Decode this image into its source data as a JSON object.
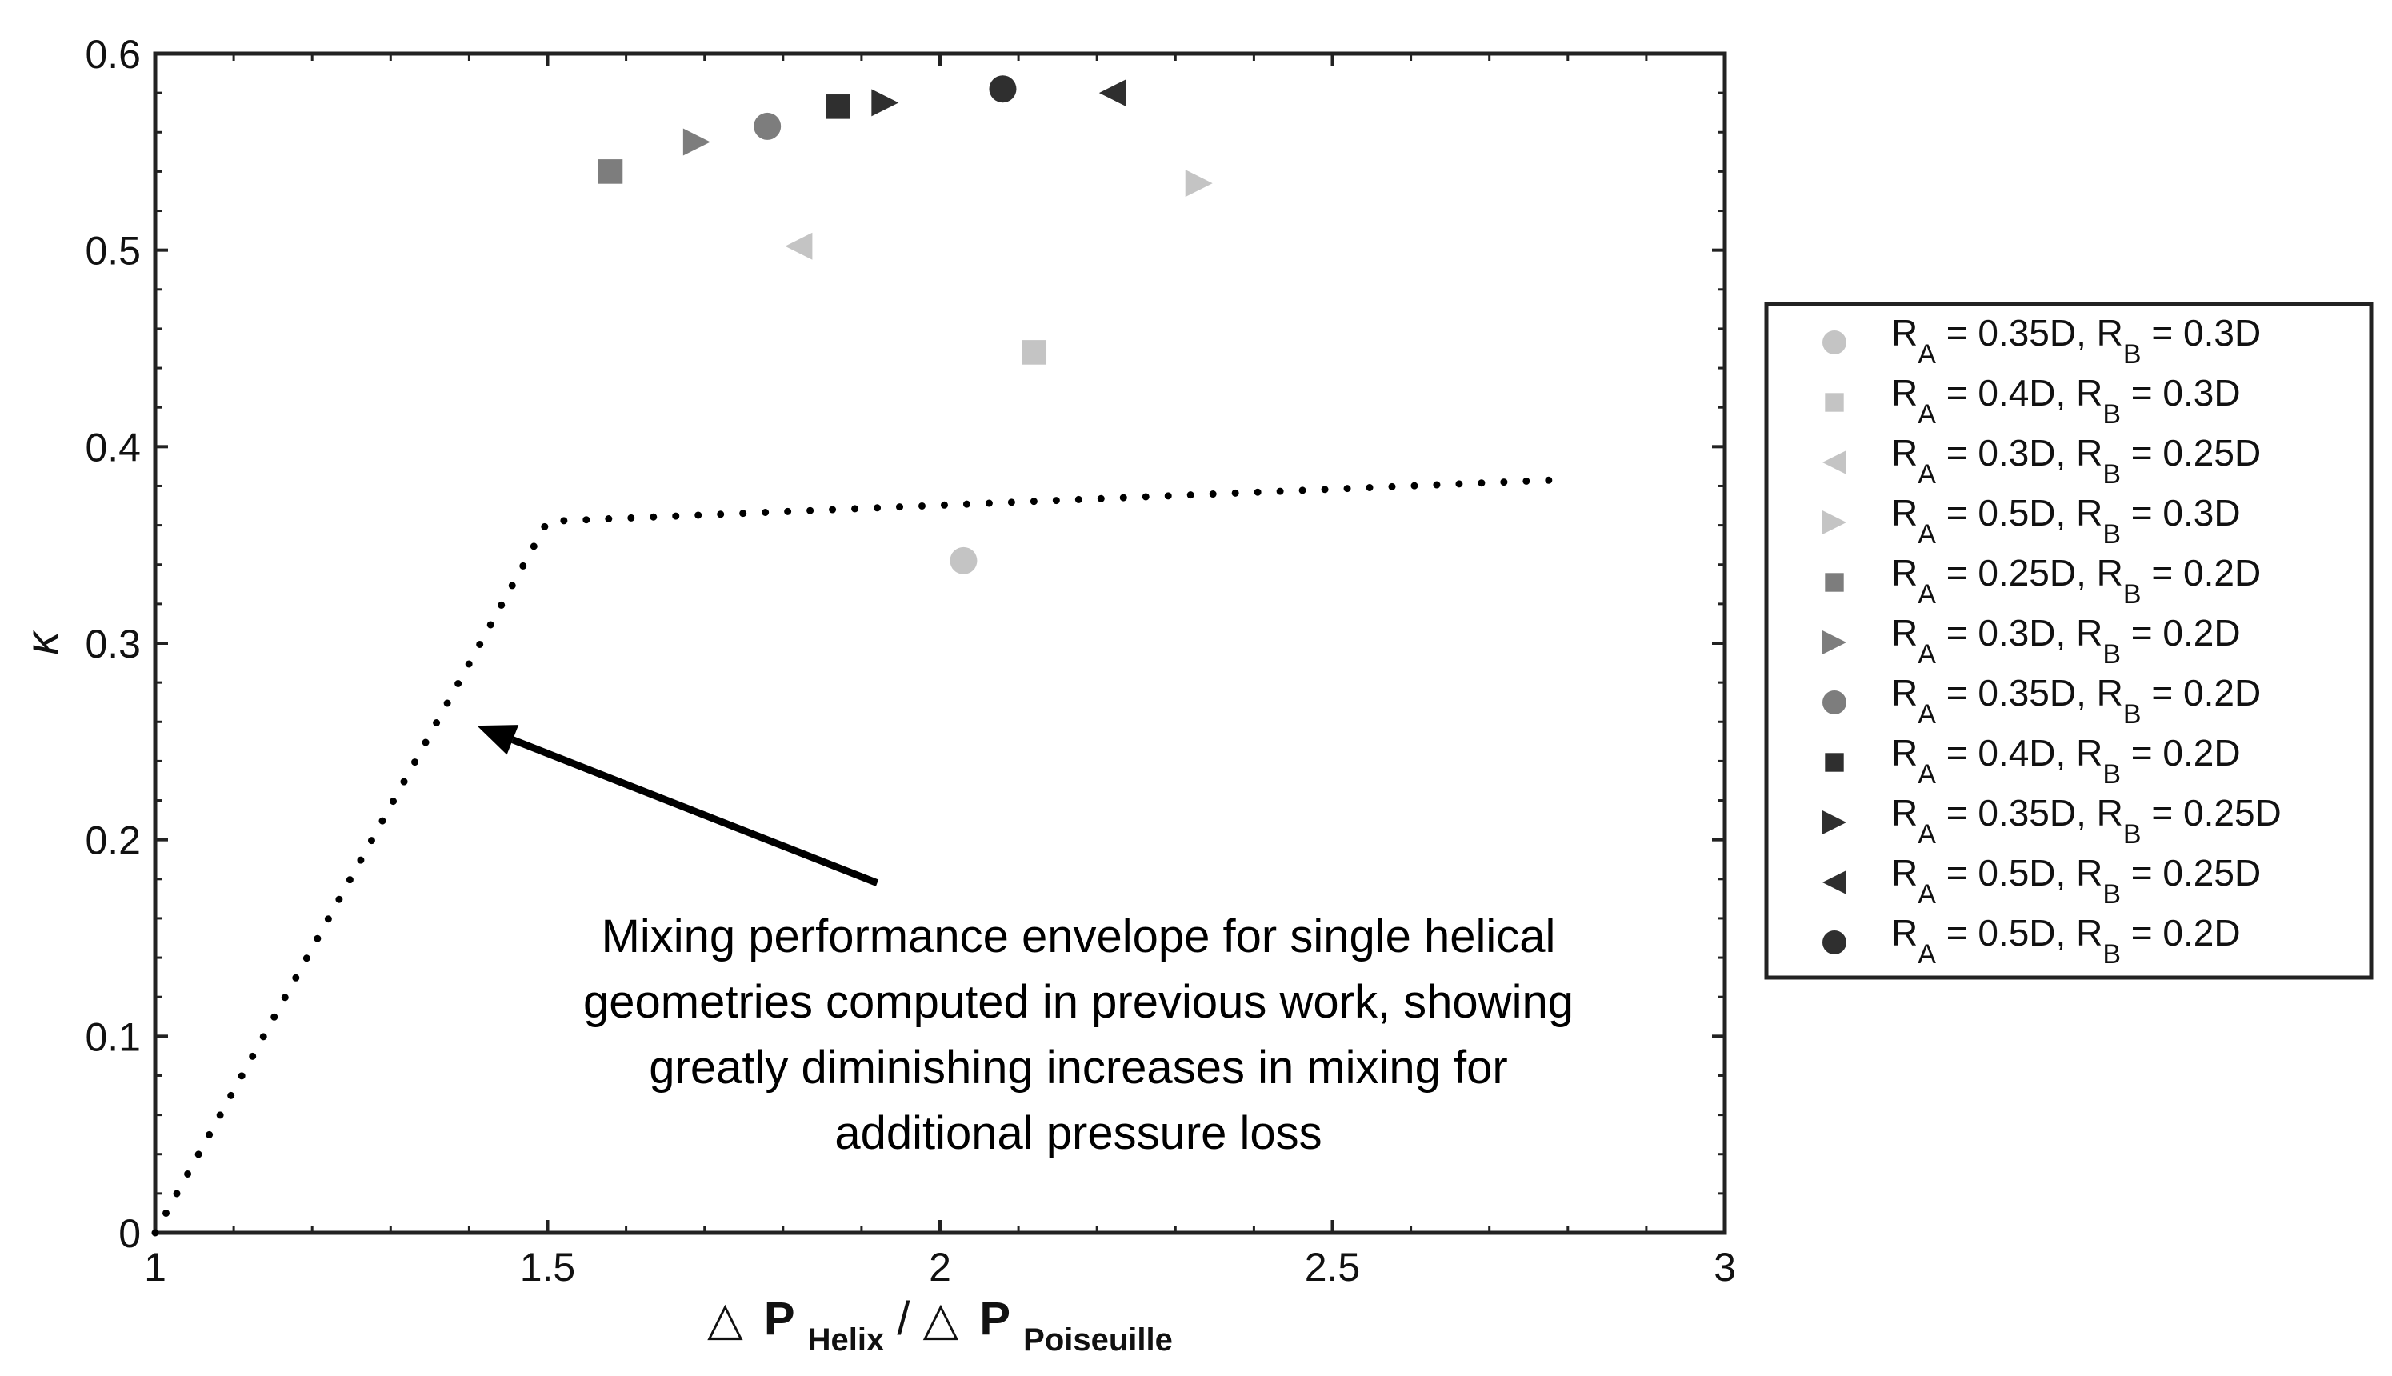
{
  "chart_data": {
    "type": "scatter",
    "title": "",
    "xlabel": {
      "delta": "△",
      "p1": "P",
      "sub1": "Helix",
      "slash": "/",
      "p2": "P",
      "sub2": "Poiseuille"
    },
    "ylabel": "κ",
    "xlim": [
      1,
      3
    ],
    "ylim": [
      0,
      0.6
    ],
    "xticks": [
      {
        "value": 1,
        "label": "1"
      },
      {
        "value": 1.5,
        "label": "1.5"
      },
      {
        "value": 2,
        "label": "2"
      },
      {
        "value": 2.5,
        "label": "2.5"
      },
      {
        "value": 3,
        "label": "3"
      }
    ],
    "yticks": [
      {
        "value": 0,
        "label": "0"
      },
      {
        "value": 0.1,
        "label": "0.1"
      },
      {
        "value": 0.2,
        "label": "0.2"
      },
      {
        "value": 0.3,
        "label": "0.3"
      },
      {
        "value": 0.4,
        "label": "0.4"
      },
      {
        "value": 0.5,
        "label": "0.5"
      },
      {
        "value": 0.6,
        "label": "0.6"
      }
    ],
    "grid": false,
    "legend_position": "right",
    "series": [
      {
        "name": "R_A = 0.35D, R_B = 0.3D",
        "ra": "0.35D",
        "rb": "0.3D",
        "marker": "circle",
        "color": "#c4c4c4",
        "x": 2.03,
        "y": 0.342
      },
      {
        "name": "R_A = 0.4D, R_B = 0.3D",
        "ra": "0.4D",
        "rb": "0.3D",
        "marker": "square",
        "color": "#c4c4c4",
        "x": 2.12,
        "y": 0.448
      },
      {
        "name": "R_A = 0.3D, R_B = 0.25D",
        "ra": "0.3D",
        "rb": "0.25D",
        "marker": "triangle-left",
        "color": "#c4c4c4",
        "x": 1.82,
        "y": 0.502
      },
      {
        "name": "R_A = 0.5D, R_B = 0.3D",
        "ra": "0.5D",
        "rb": "0.3D",
        "marker": "triangle-right",
        "color": "#c4c4c4",
        "x": 2.33,
        "y": 0.534
      },
      {
        "name": "R_A = 0.25D, R_B = 0.2D",
        "ra": "0.25D",
        "rb": "0.2D",
        "marker": "square",
        "color": "#7d7d7d",
        "x": 1.58,
        "y": 0.54
      },
      {
        "name": "R_A = 0.3D, R_B = 0.2D",
        "ra": "0.3D",
        "rb": "0.2D",
        "marker": "triangle-right",
        "color": "#7d7d7d",
        "x": 1.69,
        "y": 0.555
      },
      {
        "name": "R_A = 0.35D, R_B = 0.2D",
        "ra": "0.35D",
        "rb": "0.2D",
        "marker": "circle",
        "color": "#7d7d7d",
        "x": 1.78,
        "y": 0.563
      },
      {
        "name": "R_A = 0.4D, R_B = 0.2D",
        "ra": "0.4D",
        "rb": "0.2D",
        "marker": "square",
        "color": "#2f2f2f",
        "x": 1.87,
        "y": 0.573
      },
      {
        "name": "R_A = 0.35D, R_B = 0.25D",
        "ra": "0.35D",
        "rb": "0.25D",
        "marker": "triangle-right",
        "color": "#2f2f2f",
        "x": 1.93,
        "y": 0.575
      },
      {
        "name": "R_A = 0.5D, R_B = 0.25D",
        "ra": "0.5D",
        "rb": "0.25D",
        "marker": "triangle-left",
        "color": "#2f2f2f",
        "x": 2.22,
        "y": 0.58
      },
      {
        "name": "R_A = 0.5D, R_B = 0.2D",
        "ra": "0.5D",
        "rb": "0.2D",
        "marker": "circle",
        "color": "#2f2f2f",
        "x": 2.08,
        "y": 0.582
      }
    ],
    "envelope": {
      "style": "dotted",
      "color": "#000000",
      "points": [
        [
          1.0,
          0.0
        ],
        [
          1.5,
          0.362
        ],
        [
          2.78,
          0.383
        ]
      ]
    },
    "annotation": {
      "lines": [
        "Mixing performance envelope for single helical",
        "geometries computed in previous work, showing",
        "greatly diminishing increases in mixing for",
        "additional pressure loss"
      ],
      "arrow_from": [
        1.92,
        0.178
      ],
      "arrow_to": [
        1.41,
        0.258
      ]
    },
    "legend_label_parts": {
      "r": "R",
      "sub_a": "A",
      "sub_b": "B",
      "eq": " = ",
      "sep": ", "
    }
  }
}
